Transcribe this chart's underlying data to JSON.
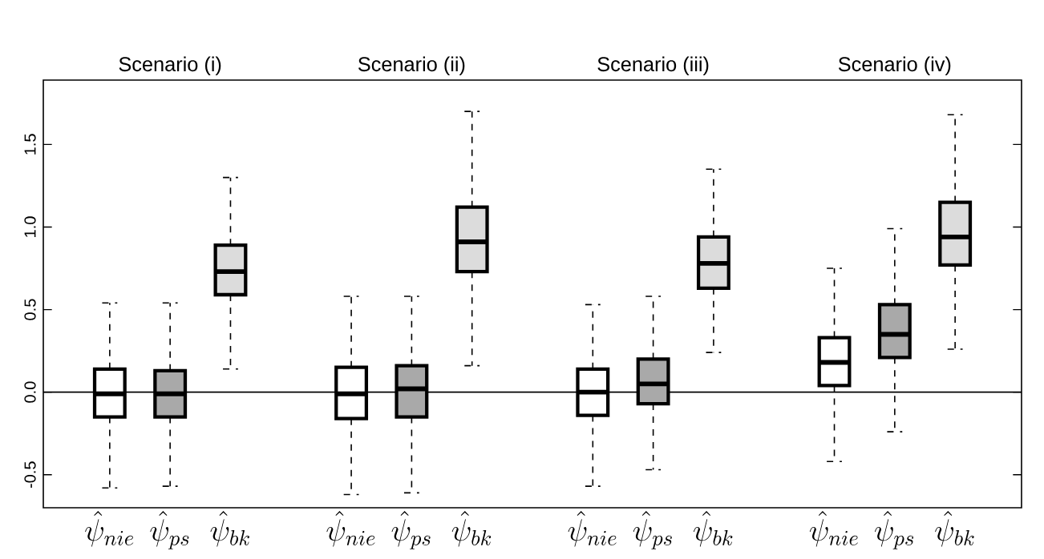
{
  "chart_data": {
    "type": "box",
    "categories": [
      "\\hat{\\psi}_{nie}",
      "\\hat{\\psi}_{ps}",
      "\\hat{\\psi}_{bk}",
      null,
      "\\hat{\\psi}_{nie}",
      "\\hat{\\psi}_{ps}",
      "\\hat{\\psi}_{bk}",
      null,
      "\\hat{\\psi}_{nie}",
      "\\hat{\\psi}_{ps}",
      "\\hat{\\psi}_{bk}",
      null,
      "\\hat{\\psi}_{nie}",
      "\\hat{\\psi}_{ps}",
      "\\hat{\\psi}_{bk}"
    ],
    "boxes": [
      {
        "low": -0.58,
        "q1": -0.15,
        "median": -0.01,
        "q3": 0.14,
        "high": 0.54
      },
      {
        "low": -0.57,
        "q1": -0.15,
        "median": -0.01,
        "q3": 0.13,
        "high": 0.54
      },
      {
        "low": 0.14,
        "q1": 0.59,
        "median": 0.73,
        "q3": 0.89,
        "high": 1.3
      },
      null,
      {
        "low": -0.62,
        "q1": -0.16,
        "median": -0.01,
        "q3": 0.15,
        "high": 0.58
      },
      {
        "low": -0.61,
        "q1": -0.15,
        "median": 0.02,
        "q3": 0.16,
        "high": 0.58
      },
      {
        "low": 0.16,
        "q1": 0.73,
        "median": 0.91,
        "q3": 1.12,
        "high": 1.7
      },
      null,
      {
        "low": -0.57,
        "q1": -0.14,
        "median": 0.0,
        "q3": 0.14,
        "high": 0.53
      },
      {
        "low": -0.47,
        "q1": -0.07,
        "median": 0.05,
        "q3": 0.2,
        "high": 0.58
      },
      {
        "low": 0.24,
        "q1": 0.63,
        "median": 0.78,
        "q3": 0.94,
        "high": 1.35
      },
      null,
      {
        "low": -0.42,
        "q1": 0.04,
        "median": 0.18,
        "q3": 0.33,
        "high": 0.75
      },
      {
        "low": -0.24,
        "q1": 0.21,
        "median": 0.35,
        "q3": 0.53,
        "high": 0.99
      },
      {
        "low": 0.26,
        "q1": 0.77,
        "median": 0.94,
        "q3": 1.15,
        "high": 1.68
      }
    ],
    "colors": [
      "#ffffff",
      "#a9a9a9",
      "#dcdcdc",
      null,
      "#ffffff",
      "#a9a9a9",
      "#dcdcdc",
      null,
      "#ffffff",
      "#a9a9a9",
      "#dcdcdc",
      null,
      "#ffffff",
      "#a9a9a9",
      "#dcdcdc"
    ],
    "ylim": [
      -0.7,
      1.89
    ],
    "yticks": [
      -0.5,
      {
        "value": 0.0,
        "label": "0.0"
      },
      0.5,
      {
        "value": 1.0,
        "label": "1.0"
      },
      1.5
    ],
    "ref_lines": [
      {
        "axis": "y",
        "value": 0
      }
    ],
    "grid": false,
    "annotations": [
      "Scenario (i)",
      "Scenario (ii)",
      "Scenario (iii)",
      "Scenario (iv)"
    ]
  }
}
